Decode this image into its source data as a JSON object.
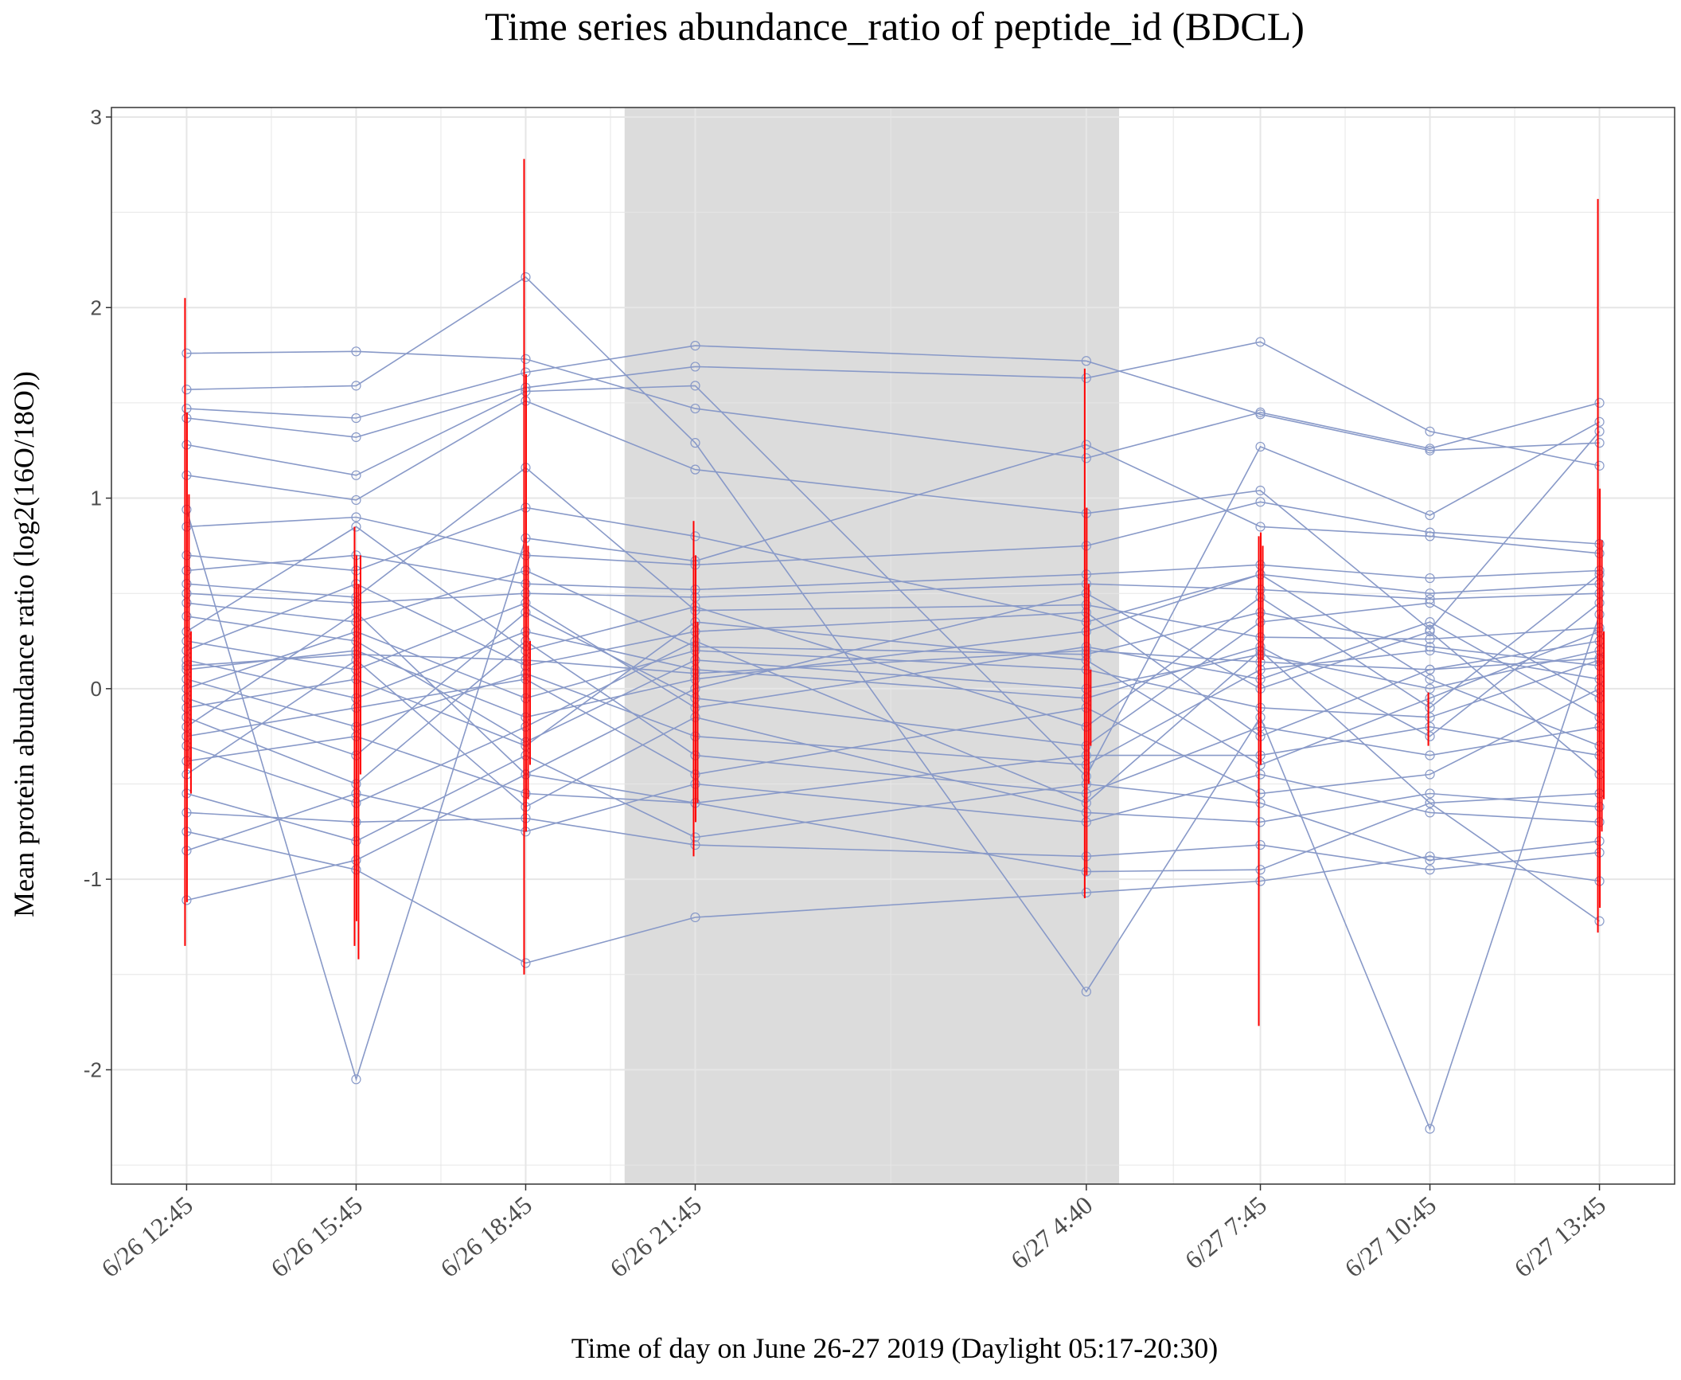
{
  "chart_data": {
    "type": "line",
    "title": "Time series abundance_ratio of peptide_id (BDCL)",
    "xlabel": "Time of day on June 26-27 2019 (Daylight 05:17-20:30)",
    "ylabel": "Mean protein abundance ratio (log2(16O/18O))",
    "ylim": [
      -2.6,
      3.05
    ],
    "y_ticks": [
      -2,
      -1,
      0,
      1,
      2,
      3
    ],
    "x_hours": [
      0,
      3,
      6,
      9,
      15.92,
      19,
      22,
      25
    ],
    "x_labels": [
      "6/26  12:45",
      "6/26  15:45",
      "6/26  18:45",
      "6/26  21:45",
      "6/27  4:40",
      "6/27  7:45",
      "6/27  10:45",
      "6/27  13:45"
    ],
    "xlim_hours": [
      -1.33,
      26.33
    ],
    "night_shade_hours": [
      7.75,
      16.5
    ],
    "grid": true,
    "colors": {
      "lines": "#8899c8",
      "error_bars": "#ff0000",
      "shade": "#dcdcdc",
      "grid": "#e6e6e6"
    },
    "series": [
      {
        "values": [
          1.76,
          1.77,
          1.73,
          1.47,
          1.21,
          1.45,
          1.26,
          1.5
        ]
      },
      {
        "values": [
          1.57,
          1.59,
          2.16,
          1.29,
          -1.59,
          -0.15,
          -2.31,
          0.39
        ]
      },
      {
        "values": [
          1.47,
          1.42,
          1.66,
          1.8,
          1.72,
          1.44,
          1.25,
          1.29
        ]
      },
      {
        "values": [
          1.42,
          1.32,
          1.58,
          1.69,
          1.63,
          1.82,
          1.35,
          1.17
        ]
      },
      {
        "values": [
          1.28,
          1.12,
          1.56,
          1.59,
          -0.46,
          1.27,
          0.91,
          1.4
        ]
      },
      {
        "values": [
          1.12,
          0.99,
          1.51,
          1.15,
          0.92,
          1.04,
          0.31,
          1.35
        ]
      },
      {
        "values": [
          0.94,
          -2.05,
          0.79,
          0.67,
          1.28,
          0.85,
          0.8,
          0.71
        ]
      },
      {
        "values": [
          0.7,
          0.62,
          0.95,
          0.8,
          0.35,
          0.6,
          0.5,
          0.55
        ]
      },
      {
        "values": [
          0.55,
          0.48,
          1.16,
          0.41,
          0.44,
          0.27,
          0.26,
          0.32
        ]
      },
      {
        "values": [
          0.45,
          0.35,
          0.62,
          0.22,
          0.18,
          0.4,
          0.22,
          0.12
        ]
      },
      {
        "values": [
          0.38,
          0.25,
          -0.28,
          0.15,
          0.0,
          0.18,
          0.0,
          0.2
        ]
      },
      {
        "values": [
          0.3,
          0.85,
          0.2,
          0.43,
          -0.2,
          0.48,
          -0.1,
          0.6
        ]
      },
      {
        "values": [
          0.25,
          0.1,
          0.45,
          -0.1,
          0.22,
          0.05,
          0.35,
          -0.15
        ]
      },
      {
        "values": [
          0.2,
          0.55,
          0.12,
          0.3,
          0.4,
          -0.25,
          0.1,
          0.25
        ]
      },
      {
        "values": [
          0.15,
          -0.05,
          0.3,
          0.1,
          -0.05,
          0.22,
          -0.25,
          0.45
        ]
      },
      {
        "values": [
          0.1,
          0.2,
          -0.15,
          0.05,
          0.3,
          0.6,
          0.05,
          -0.3
        ]
      },
      {
        "values": [
          0.05,
          -0.2,
          0.08,
          -0.25,
          -0.4,
          0.1,
          0.2,
          0.05
        ]
      },
      {
        "values": [
          0.0,
          0.3,
          -0.05,
          0.2,
          0.1,
          -0.1,
          -0.15,
          0.15
        ]
      },
      {
        "values": [
          -0.05,
          -0.35,
          0.4,
          -0.05,
          -0.3,
          0.35,
          0.45,
          -0.05
        ]
      },
      {
        "values": [
          -0.1,
          0.05,
          -0.3,
          0.35,
          0.15,
          -0.4,
          -0.05,
          0.3
        ]
      },
      {
        "values": [
          -0.15,
          -0.5,
          0.25,
          -0.35,
          -0.55,
          -0.2,
          -0.35,
          -0.2
        ]
      },
      {
        "values": [
          -0.2,
          0.4,
          -0.45,
          0.0,
          0.5,
          0.0,
          0.3,
          -0.45
        ]
      },
      {
        "values": [
          -0.25,
          -0.1,
          0.05,
          -0.45,
          -0.1,
          -0.55,
          -0.45,
          0.0
        ]
      },
      {
        "values": [
          -0.3,
          -0.6,
          -0.2,
          0.25,
          -0.6,
          0.2,
          -0.6,
          -0.55
        ]
      },
      {
        "values": [
          -0.38,
          -0.25,
          -0.55,
          -0.6,
          -0.35,
          -0.35,
          -0.2,
          -0.35
        ]
      },
      {
        "values": [
          -0.45,
          0.15,
          -0.62,
          -0.15,
          -0.65,
          -0.7,
          -0.55,
          -0.62
        ]
      },
      {
        "values": [
          -0.55,
          -0.8,
          -0.35,
          -0.78,
          -0.5,
          -0.6,
          -0.9,
          -0.8
        ]
      },
      {
        "values": [
          -0.65,
          -0.7,
          -0.68,
          -0.82,
          -0.88,
          -0.82,
          -0.95,
          -0.86
        ]
      },
      {
        "values": [
          -0.75,
          -0.95,
          -1.44,
          -1.2,
          -1.07,
          -1.01,
          -0.88,
          -1.01
        ]
      },
      {
        "values": [
          -1.11,
          -0.9,
          -0.45,
          -0.6,
          -0.96,
          -0.95,
          -0.6,
          -1.22
        ]
      },
      {
        "values": [
          0.62,
          0.7,
          0.55,
          0.52,
          0.6,
          0.65,
          0.58,
          0.62
        ]
      },
      {
        "values": [
          0.5,
          0.45,
          0.5,
          0.48,
          0.55,
          0.52,
          0.47,
          0.5
        ]
      },
      {
        "values": [
          0.85,
          0.9,
          0.7,
          0.65,
          0.75,
          0.98,
          0.82,
          0.76
        ]
      },
      {
        "values": [
          -0.85,
          -0.55,
          -0.75,
          -0.5,
          -0.7,
          -0.45,
          -0.65,
          -0.7
        ]
      },
      {
        "values": [
          0.12,
          0.18,
          0.15,
          0.08,
          0.2,
          0.14,
          0.1,
          0.16
        ]
      }
    ],
    "error_bars": [
      {
        "x": 0,
        "ymin": -1.35,
        "ymax": 2.05
      },
      {
        "x": 0,
        "ymin": -1.12,
        "ymax": 1.45
      },
      {
        "x": 0,
        "ymin": -0.42,
        "ymax": 1.02
      },
      {
        "x": 0,
        "ymin": -0.55,
        "ymax": 0.3
      },
      {
        "x": 3,
        "ymin": -1.35,
        "ymax": 0.85
      },
      {
        "x": 3,
        "ymin": -1.22,
        "ymax": 0.7
      },
      {
        "x": 3,
        "ymin": -1.42,
        "ymax": 0.55
      },
      {
        "x": 3,
        "ymin": -0.45,
        "ymax": 0.7
      },
      {
        "x": 6,
        "ymin": -1.5,
        "ymax": 2.78
      },
      {
        "x": 6,
        "ymin": -0.75,
        "ymax": 1.65
      },
      {
        "x": 6,
        "ymin": -0.58,
        "ymax": 0.75
      },
      {
        "x": 6,
        "ymin": -0.4,
        "ymax": 0.25
      },
      {
        "x": 9,
        "ymin": -0.88,
        "ymax": 0.88
      },
      {
        "x": 9,
        "ymin": -0.7,
        "ymax": 0.7
      },
      {
        "x": 9,
        "ymin": -0.6,
        "ymax": 0.35
      },
      {
        "x": 15.92,
        "ymin": -1.1,
        "ymax": 1.68
      },
      {
        "x": 15.92,
        "ymin": -0.98,
        "ymax": 0.95
      },
      {
        "x": 15.92,
        "ymin": -0.5,
        "ymax": 0.55
      },
      {
        "x": 15.92,
        "ymin": -0.3,
        "ymax": 0.1
      },
      {
        "x": 19,
        "ymin": -1.77,
        "ymax": 0.8
      },
      {
        "x": 19,
        "ymin": -0.4,
        "ymax": 0.82
      },
      {
        "x": 19,
        "ymin": 0.15,
        "ymax": 0.75
      },
      {
        "x": 22,
        "ymin": -0.3,
        "ymax": -0.02
      },
      {
        "x": 25,
        "ymin": -1.28,
        "ymax": 2.57
      },
      {
        "x": 25,
        "ymin": -1.15,
        "ymax": 1.05
      },
      {
        "x": 25,
        "ymin": -0.75,
        "ymax": 0.78
      },
      {
        "x": 25,
        "ymin": -0.58,
        "ymax": 0.3
      }
    ]
  }
}
